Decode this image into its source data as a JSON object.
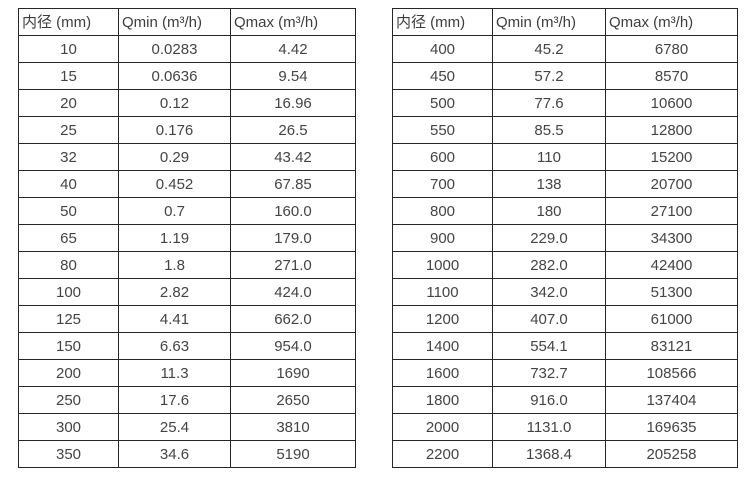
{
  "page": {
    "background_color": "#ffffff",
    "border_color": "#262626",
    "text_color": "#3d3d3d"
  },
  "tables": [
    {
      "headers": [
        "内径 (mm)",
        "Qmin (m³/h)",
        "Qmax (m³/h)"
      ],
      "rows": [
        [
          "10",
          "0.0283",
          "4.42"
        ],
        [
          "15",
          "0.0636",
          "9.54"
        ],
        [
          "20",
          "0.12",
          "16.96"
        ],
        [
          "25",
          "0.176",
          "26.5"
        ],
        [
          "32",
          "0.29",
          "43.42"
        ],
        [
          "40",
          "0.452",
          "67.85"
        ],
        [
          "50",
          "0.7",
          "160.0"
        ],
        [
          "65",
          "1.19",
          "179.0"
        ],
        [
          "80",
          "1.8",
          "271.0"
        ],
        [
          "100",
          "2.82",
          "424.0"
        ],
        [
          "125",
          "4.41",
          "662.0"
        ],
        [
          "150",
          "6.63",
          "954.0"
        ],
        [
          "200",
          "11.3",
          "1690"
        ],
        [
          "250",
          "17.6",
          "2650"
        ],
        [
          "300",
          "25.4",
          "3810"
        ],
        [
          "350",
          "34.6",
          "5190"
        ]
      ]
    },
    {
      "headers": [
        "内径 (mm)",
        "Qmin (m³/h)",
        "Qmax (m³/h)"
      ],
      "rows": [
        [
          "400",
          "45.2",
          "6780"
        ],
        [
          "450",
          "57.2",
          "8570"
        ],
        [
          "500",
          "77.6",
          "10600"
        ],
        [
          "550",
          "85.5",
          "12800"
        ],
        [
          "600",
          "110",
          "15200"
        ],
        [
          "700",
          "138",
          "20700"
        ],
        [
          "800",
          "180",
          "27100"
        ],
        [
          "900",
          "229.0",
          "34300"
        ],
        [
          "1000",
          "282.0",
          "42400"
        ],
        [
          "1100",
          "342.0",
          "51300"
        ],
        [
          "1200",
          "407.0",
          "61000"
        ],
        [
          "1400",
          "554.1",
          "83121"
        ],
        [
          "1600",
          "732.7",
          "108566"
        ],
        [
          "1800",
          "916.0",
          "137404"
        ],
        [
          "2000",
          "1131.0",
          "169635"
        ],
        [
          "2200",
          "1368.4",
          "205258"
        ]
      ]
    }
  ]
}
